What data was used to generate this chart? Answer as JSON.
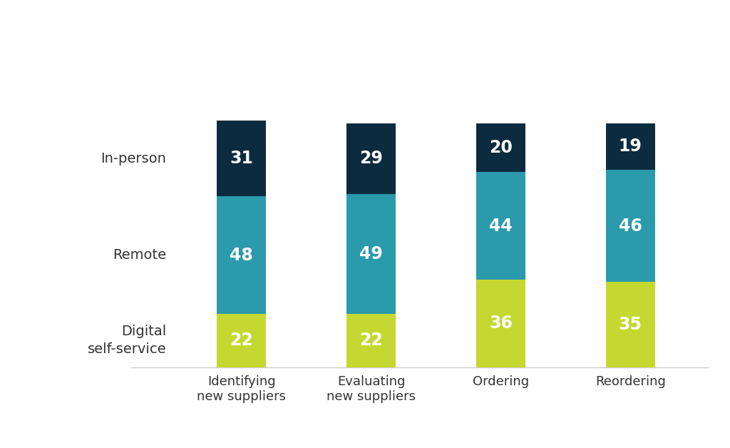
{
  "categories": [
    "Identifying\nnew suppliers",
    "Evaluating\nnew suppliers",
    "Ordering",
    "Reordering"
  ],
  "digital_self_service": [
    22,
    22,
    36,
    35
  ],
  "remote": [
    48,
    49,
    44,
    46
  ],
  "in_person": [
    31,
    29,
    20,
    19
  ],
  "color_digital": "#c5d831",
  "color_remote": "#2a9aac",
  "color_inperson": "#0d2b3e",
  "label_digital": "Digital\nself-service",
  "label_remote": "Remote",
  "label_inperson": "In-person",
  "background_color": "#ffffff",
  "bar_width": 0.38,
  "value_fontsize": 17,
  "label_fontsize": 14,
  "tick_fontsize": 13,
  "ylim_max": 145
}
